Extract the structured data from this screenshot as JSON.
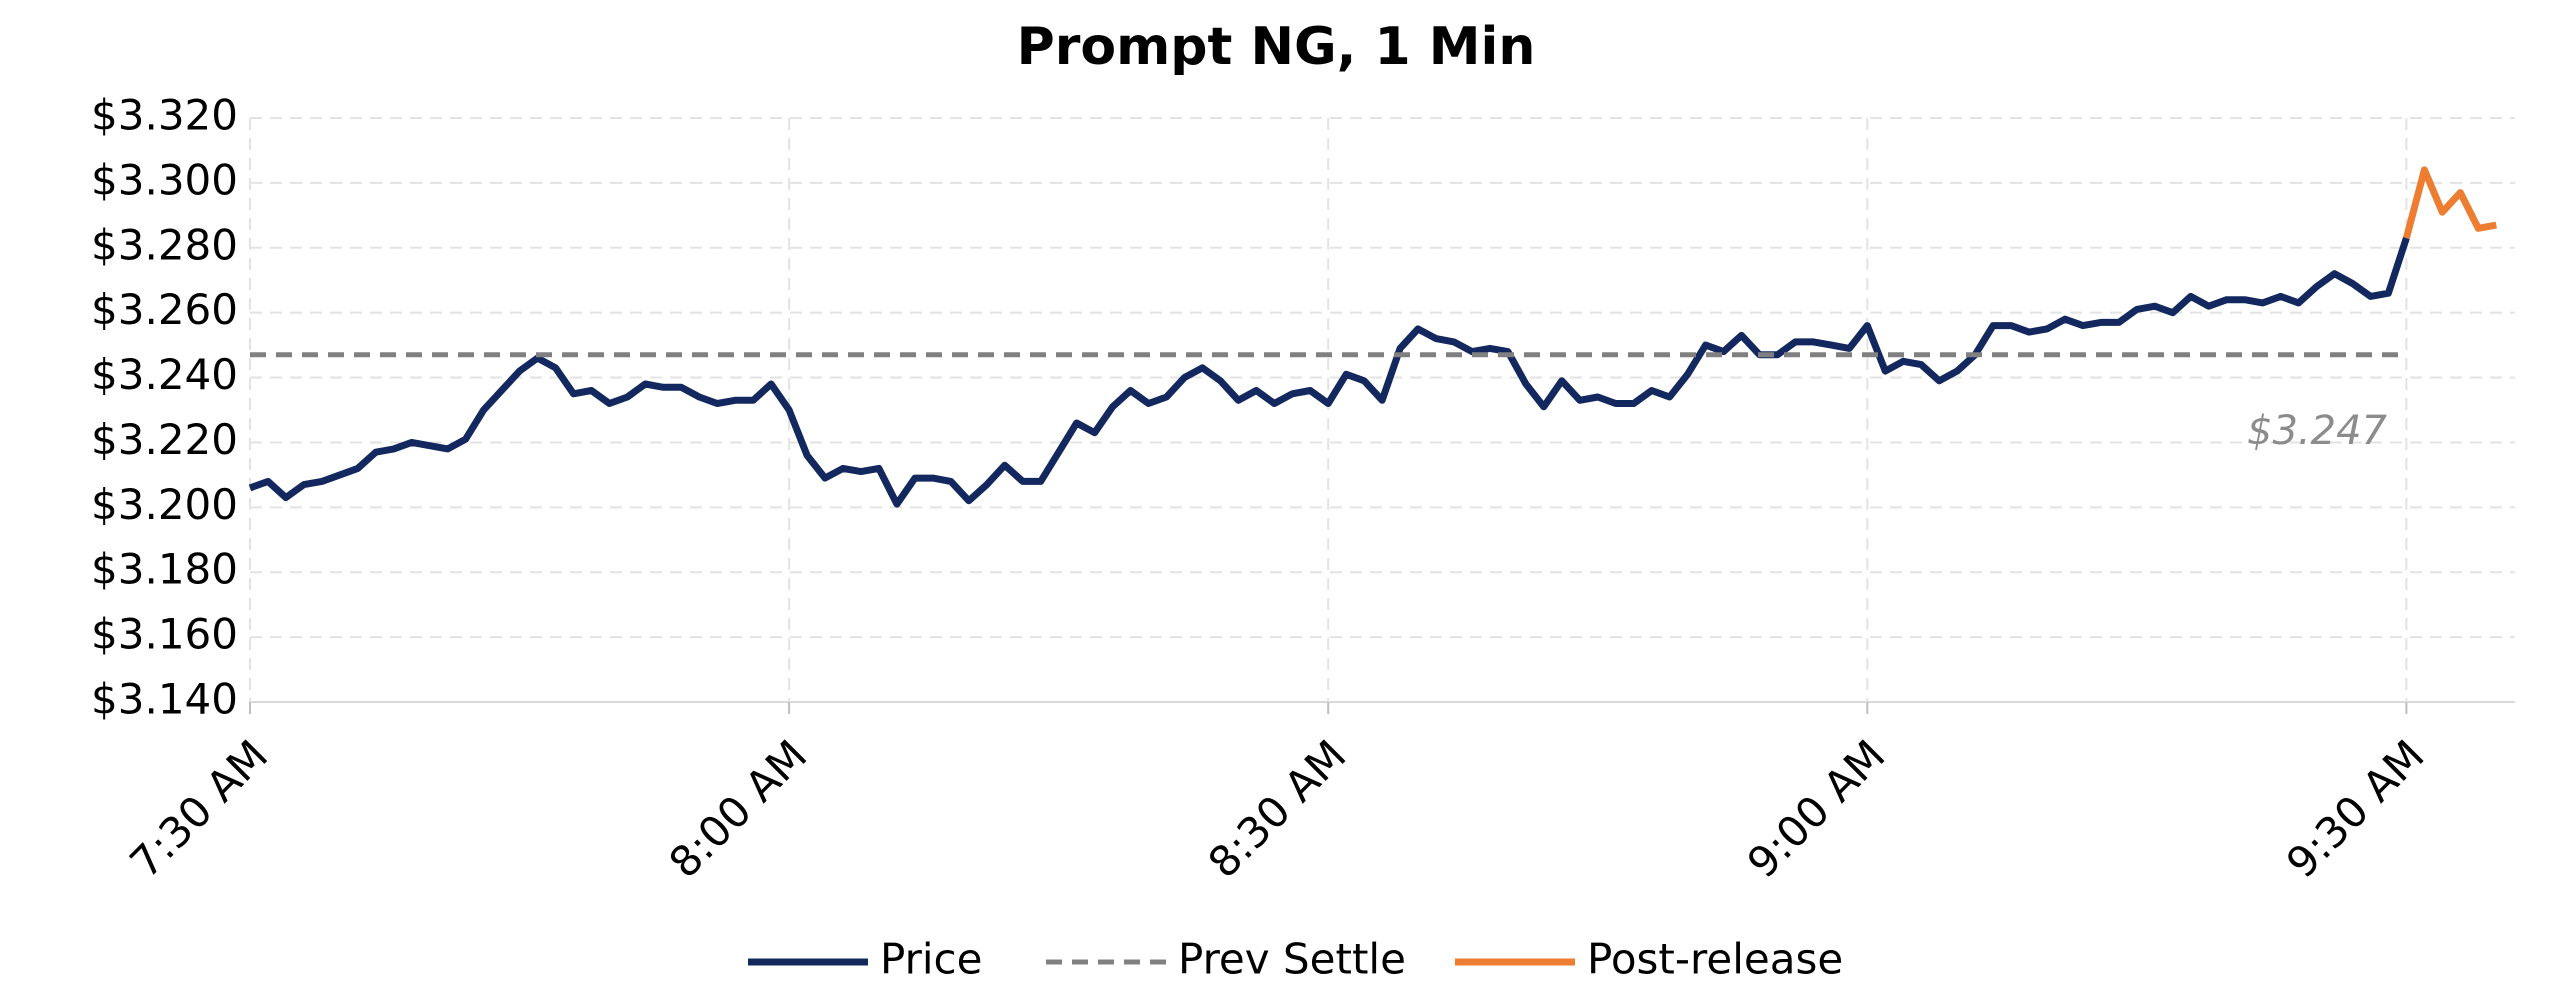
{
  "chart_data": {
    "type": "line",
    "title": "Prompt NG, 1 Min",
    "categories": [
      "7:30 AM",
      null,
      null,
      null,
      null,
      null,
      null,
      null,
      null,
      null,
      null,
      null,
      null,
      null,
      null,
      null,
      null,
      null,
      null,
      null,
      null,
      null,
      null,
      null,
      null,
      null,
      null,
      null,
      null,
      null,
      "8:00 AM",
      null,
      null,
      null,
      null,
      null,
      null,
      null,
      null,
      null,
      null,
      null,
      null,
      null,
      null,
      null,
      null,
      null,
      null,
      null,
      null,
      null,
      null,
      null,
      null,
      null,
      null,
      null,
      null,
      null,
      "8:30 AM",
      null,
      null,
      null,
      null,
      null,
      null,
      null,
      null,
      null,
      null,
      null,
      null,
      null,
      null,
      null,
      null,
      null,
      null,
      null,
      null,
      null,
      null,
      null,
      null,
      null,
      null,
      null,
      null,
      null,
      "9:00 AM",
      null,
      null,
      null,
      null,
      null,
      null,
      null,
      null,
      null,
      null,
      null,
      null,
      null,
      null,
      null,
      null,
      null,
      null,
      null,
      null,
      null,
      null,
      null,
      null,
      null,
      null,
      null,
      null,
      null,
      "9:30 AM",
      null,
      null,
      null,
      null,
      null
    ],
    "series": [
      {
        "name": "Price",
        "color": "#13285e",
        "dash": false,
        "values": [
          3.206,
          3.208,
          3.203,
          3.207,
          3.208,
          3.21,
          3.212,
          3.217,
          3.218,
          3.22,
          3.219,
          3.218,
          3.221,
          3.23,
          3.236,
          3.242,
          3.246,
          3.243,
          3.235,
          3.236,
          3.232,
          3.234,
          3.238,
          3.237,
          3.237,
          3.234,
          3.232,
          3.233,
          3.233,
          3.238,
          3.23,
          3.216,
          3.209,
          3.212,
          3.211,
          3.212,
          3.201,
          3.209,
          3.209,
          3.208,
          3.202,
          3.207,
          3.213,
          3.208,
          3.208,
          3.217,
          3.226,
          3.223,
          3.231,
          3.236,
          3.232,
          3.234,
          3.24,
          3.243,
          3.239,
          3.233,
          3.236,
          3.232,
          3.235,
          3.236,
          3.232,
          3.241,
          3.239,
          3.233,
          3.249,
          3.255,
          3.252,
          3.251,
          3.248,
          3.249,
          3.248,
          3.238,
          3.231,
          3.239,
          3.233,
          3.234,
          3.232,
          3.232,
          3.236,
          3.234,
          3.241,
          3.25,
          3.248,
          3.253,
          3.247,
          3.247,
          3.251,
          3.251,
          3.25,
          3.249,
          3.256,
          3.242,
          3.245,
          3.244,
          3.239,
          3.242,
          3.247,
          3.256,
          3.256,
          3.254,
          3.255,
          3.258,
          3.256,
          3.257,
          3.257,
          3.261,
          3.262,
          3.26,
          3.265,
          3.262,
          3.264,
          3.264,
          3.263,
          3.265,
          3.263,
          3.268,
          3.272,
          3.269,
          3.265,
          3.266,
          3.283,
          null,
          null,
          null,
          null,
          null
        ]
      },
      {
        "name": "Prev Settle",
        "color": "#808080",
        "dash": true,
        "values": [
          3.247,
          3.247,
          3.247,
          3.247,
          3.247,
          3.247,
          3.247,
          3.247,
          3.247,
          3.247,
          3.247,
          3.247,
          3.247,
          3.247,
          3.247,
          3.247,
          3.247,
          3.247,
          3.247,
          3.247,
          3.247,
          3.247,
          3.247,
          3.247,
          3.247,
          3.247,
          3.247,
          3.247,
          3.247,
          3.247,
          3.247,
          3.247,
          3.247,
          3.247,
          3.247,
          3.247,
          3.247,
          3.247,
          3.247,
          3.247,
          3.247,
          3.247,
          3.247,
          3.247,
          3.247,
          3.247,
          3.247,
          3.247,
          3.247,
          3.247,
          3.247,
          3.247,
          3.247,
          3.247,
          3.247,
          3.247,
          3.247,
          3.247,
          3.247,
          3.247,
          3.247,
          3.247,
          3.247,
          3.247,
          3.247,
          3.247,
          3.247,
          3.247,
          3.247,
          3.247,
          3.247,
          3.247,
          3.247,
          3.247,
          3.247,
          3.247,
          3.247,
          3.247,
          3.247,
          3.247,
          3.247,
          3.247,
          3.247,
          3.247,
          3.247,
          3.247,
          3.247,
          3.247,
          3.247,
          3.247,
          3.247,
          3.247,
          3.247,
          3.247,
          3.247,
          3.247,
          3.247,
          3.247,
          3.247,
          3.247,
          3.247,
          3.247,
          3.247,
          3.247,
          3.247,
          3.247,
          3.247,
          3.247,
          3.247,
          3.247,
          3.247,
          3.247,
          3.247,
          3.247,
          3.247,
          3.247,
          3.247,
          3.247,
          3.247,
          3.247,
          3.247,
          null,
          null,
          null,
          null,
          null
        ]
      },
      {
        "name": "Post-release",
        "color": "#ed7d31",
        "dash": false,
        "values": [
          null,
          null,
          null,
          null,
          null,
          null,
          null,
          null,
          null,
          null,
          null,
          null,
          null,
          null,
          null,
          null,
          null,
          null,
          null,
          null,
          null,
          null,
          null,
          null,
          null,
          null,
          null,
          null,
          null,
          null,
          null,
          null,
          null,
          null,
          null,
          null,
          null,
          null,
          null,
          null,
          null,
          null,
          null,
          null,
          null,
          null,
          null,
          null,
          null,
          null,
          null,
          null,
          null,
          null,
          null,
          null,
          null,
          null,
          null,
          null,
          null,
          null,
          null,
          null,
          null,
          null,
          null,
          null,
          null,
          null,
          null,
          null,
          null,
          null,
          null,
          null,
          null,
          null,
          null,
          null,
          null,
          null,
          null,
          null,
          null,
          null,
          null,
          null,
          null,
          null,
          null,
          null,
          null,
          null,
          null,
          null,
          null,
          null,
          null,
          null,
          null,
          null,
          null,
          null,
          null,
          null,
          null,
          null,
          null,
          null,
          null,
          null,
          null,
          null,
          null,
          null,
          null,
          null,
          null,
          null,
          3.283,
          3.304,
          3.291,
          3.297,
          3.286,
          3.287
        ]
      }
    ],
    "annotation": "$3.247",
    "ylim": [
      3.14,
      3.32
    ],
    "yticks": [
      {
        "value": 3.14,
        "label": "$3.140"
      },
      {
        "value": 3.16,
        "label": "$3.160"
      },
      {
        "value": 3.18,
        "label": "$3.180"
      },
      {
        "value": 3.2,
        "label": "$3.200"
      },
      {
        "value": 3.22,
        "label": "$3.220"
      },
      {
        "value": 3.24,
        "label": "$3.240"
      },
      {
        "value": 3.26,
        "label": "$3.260"
      },
      {
        "value": 3.28,
        "label": "$3.280"
      },
      {
        "value": 3.3,
        "label": "$3.300"
      },
      {
        "value": 3.32,
        "label": "$3.320"
      }
    ],
    "grid": true,
    "legend": "bottom"
  }
}
